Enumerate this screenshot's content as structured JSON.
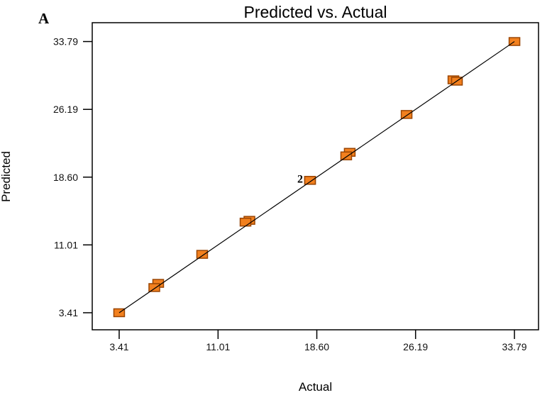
{
  "chart_data": {
    "type": "scatter",
    "title": "Predicted vs. Actual",
    "xlabel": "Actual",
    "ylabel": "Predicted",
    "panel_label": "A",
    "axis": {
      "tick_labels": [
        "3.41",
        "11.01",
        "18.60",
        "26.19",
        "33.79"
      ],
      "tick_values": [
        3.41,
        11.01,
        18.6,
        26.19,
        33.79
      ],
      "xlim": [
        1.34,
        35.64
      ],
      "ylim": [
        1.5,
        35.9
      ],
      "grid": false,
      "legend": "none"
    },
    "identity_line": {
      "from": 3.41,
      "to": 33.79
    },
    "marker": {
      "shape": "square",
      "width": 15,
      "height": 11
    },
    "points": [
      {
        "actual": 3.41,
        "predicted": 3.41
      },
      {
        "actual": 6.41,
        "predicted": 6.7
      },
      {
        "actual": 6.11,
        "predicted": 6.23
      },
      {
        "actual": 9.79,
        "predicted": 9.95
      },
      {
        "actual": 13.42,
        "predicted": 13.76
      },
      {
        "actual": 13.12,
        "predicted": 13.56
      },
      {
        "actual": 18.08,
        "predicted": 18.24
      },
      {
        "actual": 18.08,
        "predicted": 18.24
      },
      {
        "actual": 21.13,
        "predicted": 21.38
      },
      {
        "actual": 20.86,
        "predicted": 20.98
      },
      {
        "actual": 25.5,
        "predicted": 25.62
      },
      {
        "actual": 29.1,
        "predicted": 29.5
      },
      {
        "actual": 29.37,
        "predicted": 29.35
      },
      {
        "actual": 33.79,
        "predicted": 33.79
      }
    ],
    "annotations": [
      {
        "text": "2",
        "actual": 18.08,
        "predicted": 18.24
      }
    ],
    "colors": {
      "marker_fill": "#F2801E",
      "marker_stroke": "#9A4503",
      "line": "#000000",
      "axis": "#000000",
      "text": "#111111",
      "background": "#FFFFFF"
    }
  }
}
